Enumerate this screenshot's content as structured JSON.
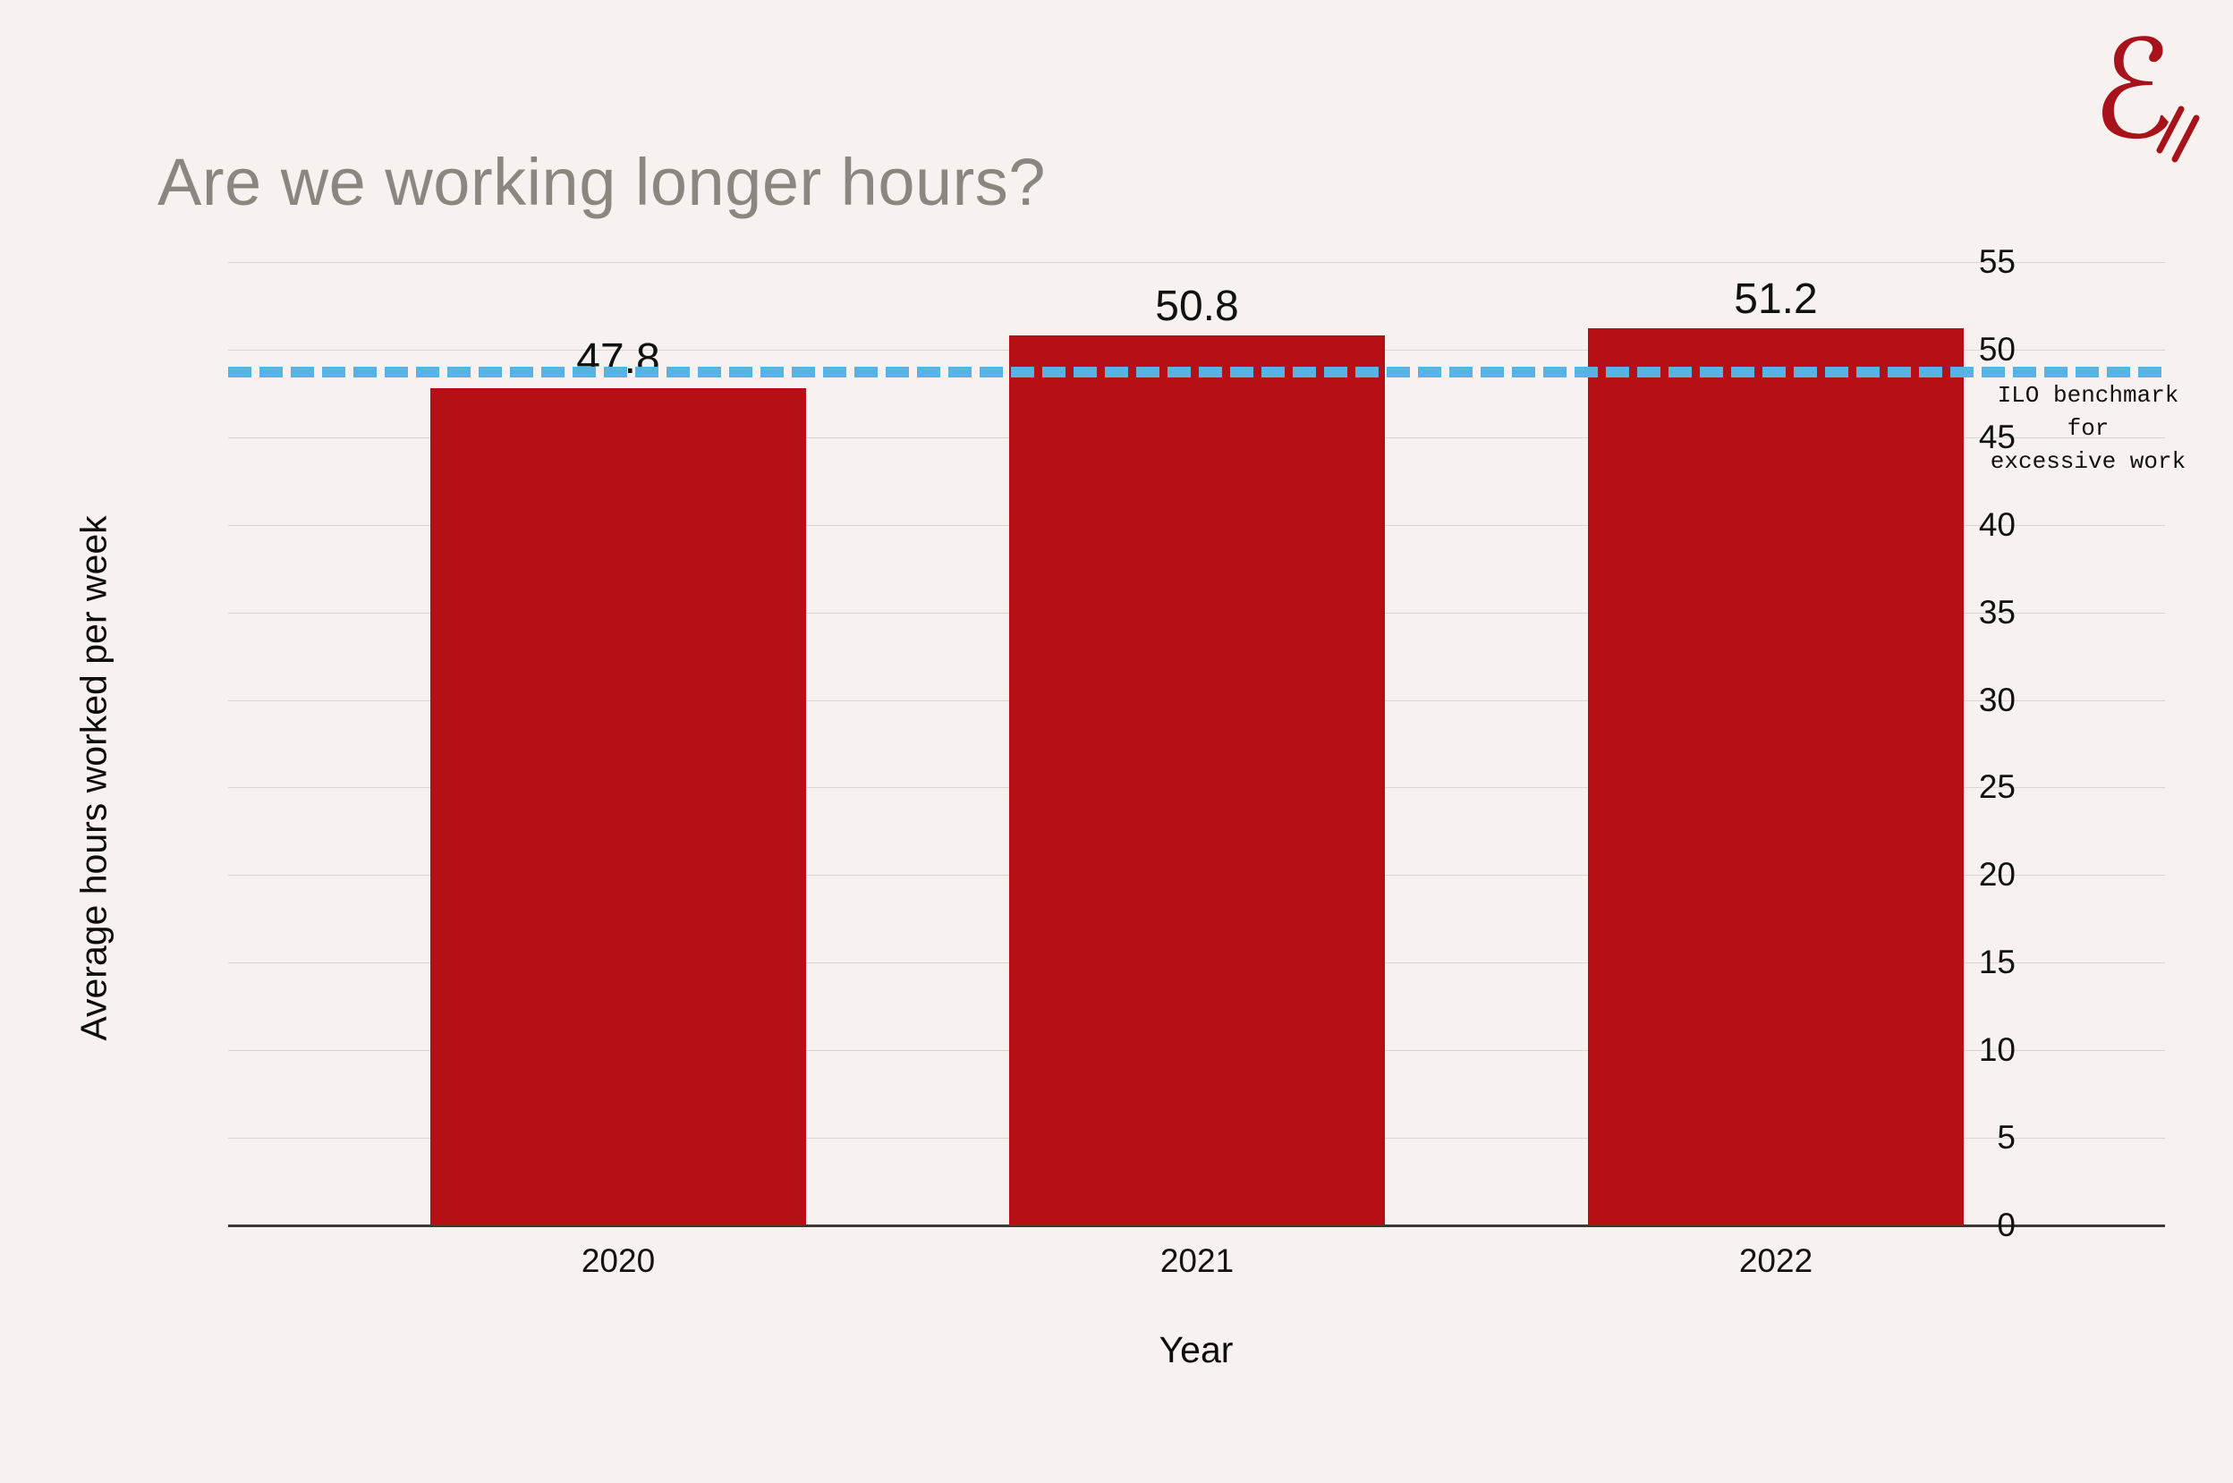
{
  "page": {
    "background_color": "#f7f2ef"
  },
  "logo": {
    "glyph": "ℰ",
    "color": "#a8121b"
  },
  "chart_data": {
    "type": "bar",
    "title": "Are we working longer hours?",
    "title_color": "#8c8681",
    "xlabel": "Year",
    "ylabel": "Average hours worked per week",
    "categories": [
      "2020",
      "2021",
      "2022"
    ],
    "values": [
      47.8,
      50.8,
      51.2
    ],
    "value_labels": [
      "47.8",
      "50.8",
      "51.2"
    ],
    "bar_color": "#b51015",
    "ylim": [
      0,
      55
    ],
    "yticks": [
      0,
      5,
      10,
      15,
      20,
      25,
      30,
      35,
      40,
      45,
      50,
      55
    ],
    "grid": true,
    "gridline_color": "#dcd6d2",
    "reference_line": {
      "value": 48.7,
      "style": "dashed",
      "color": "#58b3e5",
      "label_lines": [
        "ILO benchmark for",
        "excessive work"
      ],
      "label_position": "right-below-line"
    },
    "legend": "none"
  }
}
